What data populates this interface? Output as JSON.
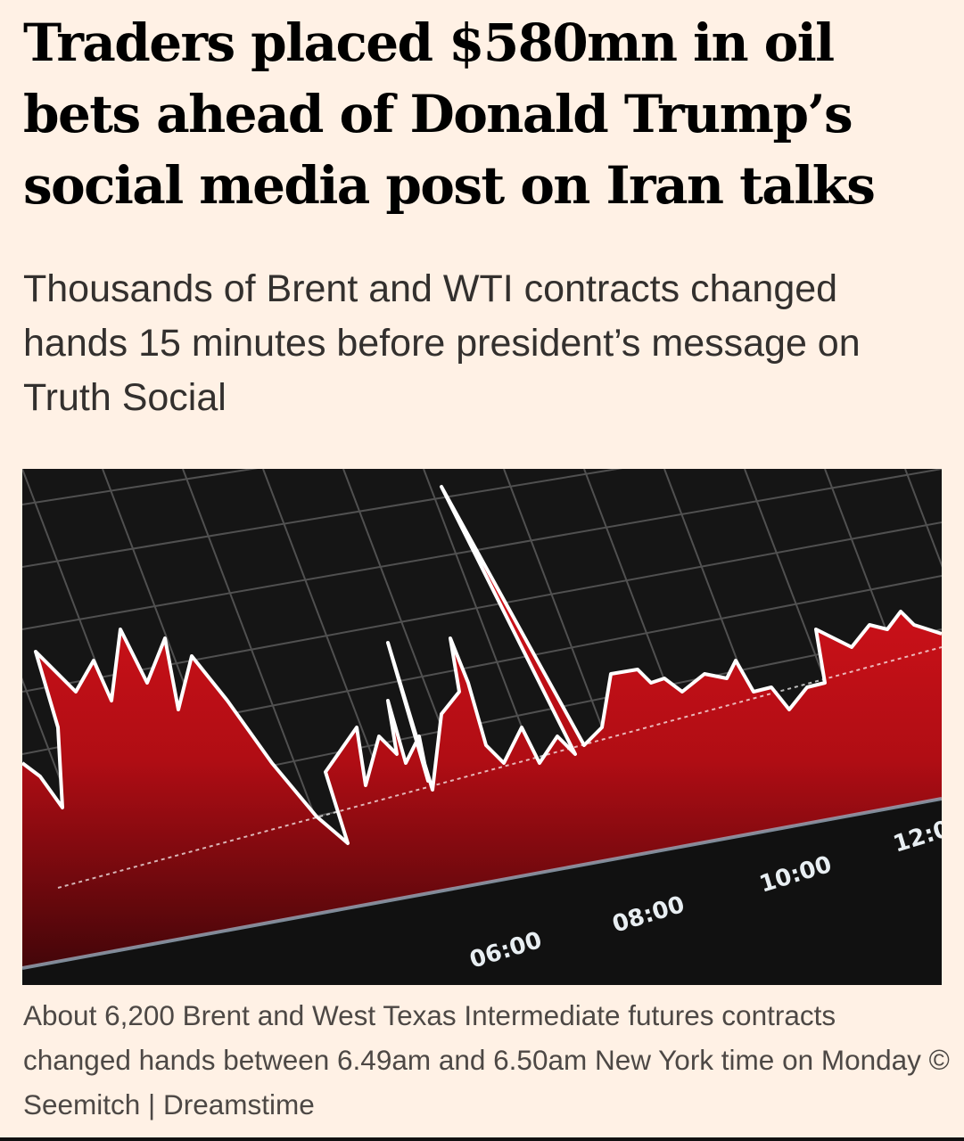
{
  "article": {
    "headline": "Traders placed $580mn in oil bets ahead of Donald Trump’s social media post on Iran talks",
    "standfirst": "Thousands of Brent and WTI contracts changed hands 15 minutes before president’s message on Truth Social",
    "image": {
      "description_icon": "stock-chart-photo",
      "photo_axis_labels": [
        "06:00",
        "08:00",
        "10:00",
        "12:0"
      ],
      "colors": {
        "screen": "#151515",
        "fill": "#d0121b",
        "line": "#ffffff",
        "grid": "#6a6a6a"
      }
    },
    "caption": "About 6,200 Brent and West Texas Intermediate futures contracts changed hands between 6.49am and 6.50am New York time on Monday © Seemitch | Dreamstime"
  }
}
